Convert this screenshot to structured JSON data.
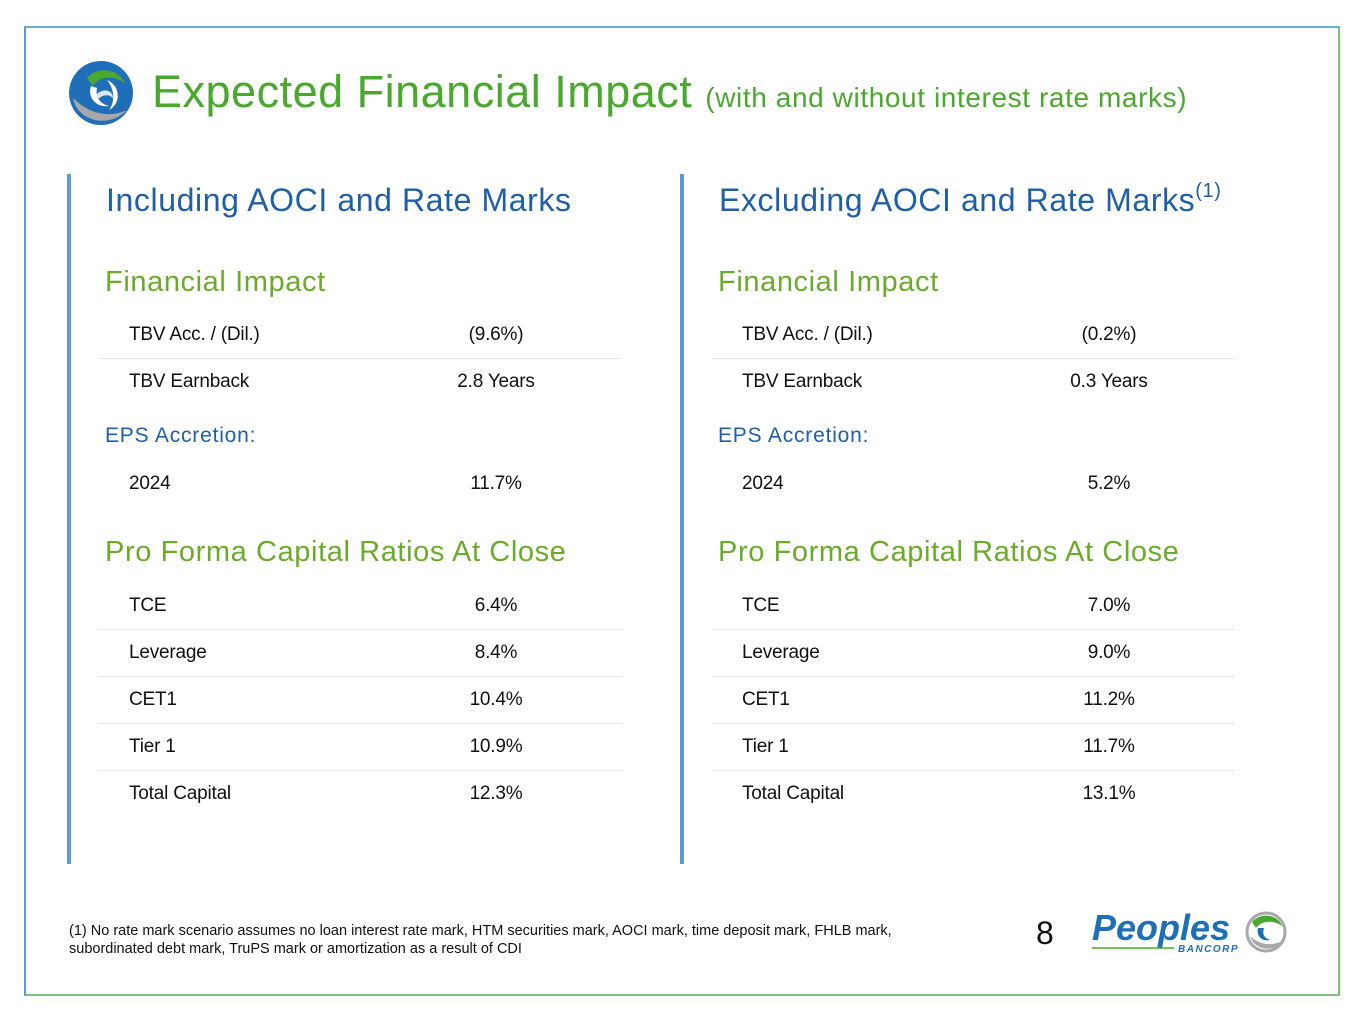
{
  "header": {
    "title": "Expected Financial Impact",
    "subtitle": "(with and without interest rate marks)"
  },
  "columns": [
    {
      "heading": "Including AOCI and Rate Marks",
      "heading_sup": "",
      "financial_impact_label": "Financial Impact",
      "financial_impact": [
        {
          "label": "TBV Acc. / (Dil.)",
          "value": "(9.6%)"
        },
        {
          "label": "TBV Earnback",
          "value": "2.8 Years"
        }
      ],
      "eps_label": "EPS Accretion:",
      "eps": [
        {
          "label": "2024",
          "value": "11.7%"
        }
      ],
      "capital_label": "Pro Forma Capital Ratios At Close",
      "capital": [
        {
          "label": "TCE",
          "value": "6.4%"
        },
        {
          "label": "Leverage",
          "value": "8.4%"
        },
        {
          "label": "CET1",
          "value": "10.4%"
        },
        {
          "label": "Tier 1",
          "value": "10.9%"
        },
        {
          "label": "Total Capital",
          "value": "12.3%"
        }
      ]
    },
    {
      "heading": "Excluding AOCI and Rate Marks",
      "heading_sup": "(1)",
      "financial_impact_label": "Financial Impact",
      "financial_impact": [
        {
          "label": "TBV Acc. / (Dil.)",
          "value": "(0.2%)"
        },
        {
          "label": "TBV Earnback",
          "value": "0.3 Years"
        }
      ],
      "eps_label": "EPS Accretion:",
      "eps": [
        {
          "label": "2024",
          "value": "5.2%"
        }
      ],
      "capital_label": "Pro Forma Capital Ratios At Close",
      "capital": [
        {
          "label": "TCE",
          "value": "7.0%"
        },
        {
          "label": "Leverage",
          "value": "9.0%"
        },
        {
          "label": "CET1",
          "value": "11.2%"
        },
        {
          "label": "Tier 1",
          "value": "11.7%"
        },
        {
          "label": "Total Capital",
          "value": "13.1%"
        }
      ]
    }
  ],
  "footer": {
    "footnote": "(1) No rate mark scenario assumes no loan interest rate mark, HTM securities mark, AOCI mark, time deposit mark, FHLB mark, subordinated debt mark, TruPS mark or amortization as a result of CDI",
    "page_number": "8",
    "brand_name": "Peoples",
    "brand_sub": "BANCORP"
  },
  "colors": {
    "title_green": "#4aa82e",
    "section_green": "#6aac2a",
    "heading_blue": "#1f5fa8",
    "divider_blue": "#5b9bd5"
  }
}
